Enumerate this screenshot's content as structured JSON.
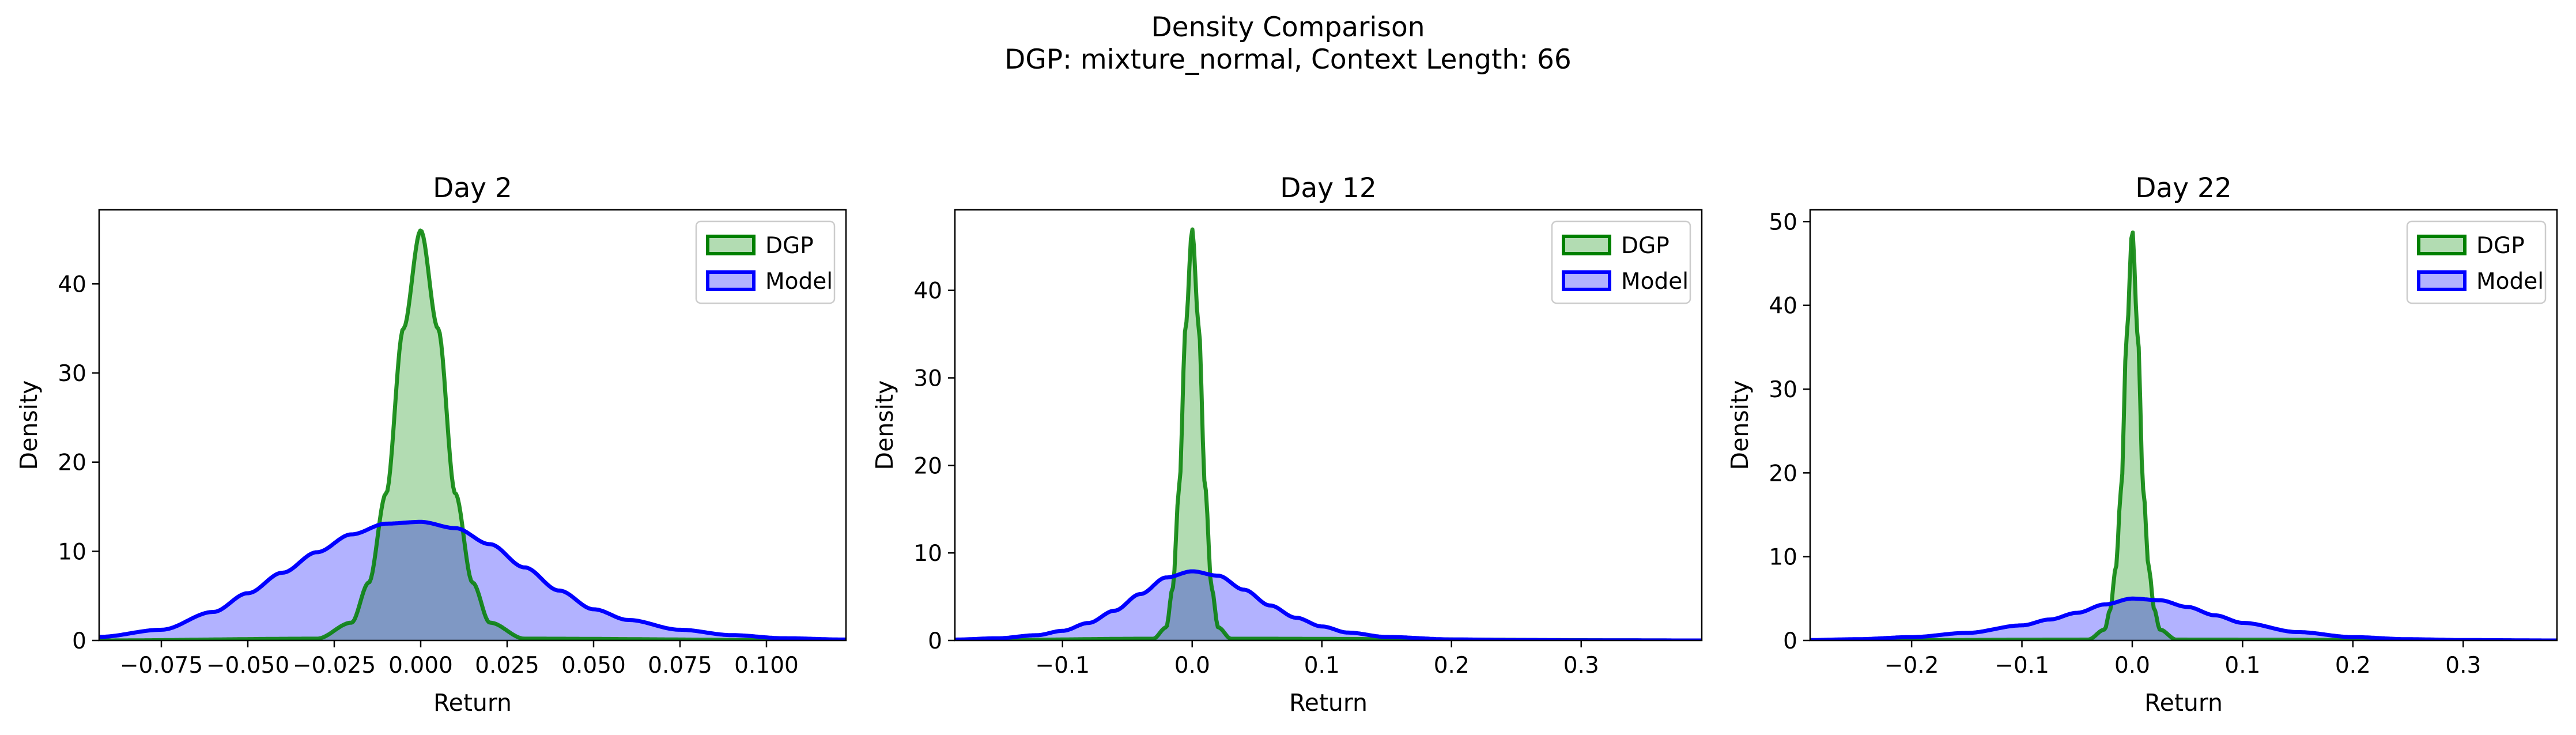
{
  "figure": {
    "title_line1": "Density Comparison",
    "title_line2": "DGP: mixture_normal, Context Length: 66"
  },
  "colors": {
    "dgp_line": "#008000",
    "dgp_fill": "#b2dcb2",
    "model_line": "#0000ff",
    "model_fill": "#b2b2ff",
    "overlap_fill": "#7f98c4"
  },
  "chart_data": [
    {
      "type": "area",
      "title": "Day 2",
      "xlabel": "Return",
      "ylabel": "Density",
      "xlim": [
        -0.093,
        0.123
      ],
      "ylim": [
        0,
        48.3
      ],
      "xticks": [
        -0.075,
        -0.05,
        -0.025,
        0.0,
        0.025,
        0.05,
        0.075,
        0.1
      ],
      "xtick_labels": [
        "−0.075",
        "−0.050",
        "−0.025",
        "0.000",
        "0.025",
        "0.050",
        "0.075",
        "0.100"
      ],
      "yticks": [
        0,
        10,
        20,
        30,
        40
      ],
      "ytick_labels": [
        "0",
        "10",
        "20",
        "30",
        "40"
      ],
      "legend": {
        "position": "top-right",
        "entries": [
          "DGP",
          "Model"
        ]
      },
      "series": [
        {
          "name": "DGP",
          "x": [
            -0.093,
            -0.03,
            -0.02,
            -0.015,
            -0.01,
            -0.005,
            0.0,
            0.005,
            0.01,
            0.015,
            0.02,
            0.03,
            0.123
          ],
          "y": [
            0,
            0.2,
            2.0,
            6.5,
            16.5,
            35.0,
            46.0,
            35.0,
            16.5,
            6.5,
            2.0,
            0.2,
            0
          ]
        },
        {
          "name": "Model",
          "x": [
            -0.093,
            -0.075,
            -0.06,
            -0.05,
            -0.04,
            -0.03,
            -0.02,
            -0.01,
            0.0,
            0.01,
            0.02,
            0.03,
            0.04,
            0.05,
            0.06,
            0.075,
            0.09,
            0.105,
            0.123
          ],
          "y": [
            0.4,
            1.2,
            3.2,
            5.3,
            7.6,
            9.9,
            11.9,
            13.1,
            13.3,
            12.6,
            10.8,
            8.2,
            5.6,
            3.5,
            2.3,
            1.2,
            0.6,
            0.25,
            0.1
          ]
        }
      ]
    },
    {
      "type": "area",
      "title": "Day 12",
      "xlabel": "Return",
      "ylabel": "Density",
      "xlim": [
        -0.183,
        0.393
      ],
      "ylim": [
        0,
        49.2
      ],
      "xticks": [
        -0.1,
        0.0,
        0.1,
        0.2,
        0.3
      ],
      "xtick_labels": [
        "−0.1",
        "0.0",
        "0.1",
        "0.2",
        "0.3"
      ],
      "yticks": [
        0,
        10,
        20,
        30,
        40
      ],
      "ytick_labels": [
        "0",
        "10",
        "20",
        "30",
        "40"
      ],
      "legend": {
        "position": "top-right",
        "entries": [
          "DGP",
          "Model"
        ]
      },
      "series": [
        {
          "name": "DGP",
          "x": [
            -0.183,
            -0.03,
            -0.02,
            -0.015,
            -0.01,
            -0.005,
            0.0,
            0.005,
            0.01,
            0.015,
            0.02,
            0.03,
            0.393
          ],
          "y": [
            0,
            0.2,
            1.5,
            6.0,
            17.5,
            36.0,
            47.0,
            36.0,
            17.5,
            6.0,
            1.5,
            0.2,
            0
          ]
        },
        {
          "name": "Model",
          "x": [
            -0.183,
            -0.15,
            -0.12,
            -0.1,
            -0.08,
            -0.06,
            -0.04,
            -0.02,
            0.0,
            0.02,
            0.04,
            0.06,
            0.08,
            0.1,
            0.12,
            0.15,
            0.2,
            0.25,
            0.3,
            0.393
          ],
          "y": [
            0.1,
            0.25,
            0.6,
            1.1,
            2.0,
            3.4,
            5.3,
            7.2,
            7.9,
            7.4,
            5.8,
            4.0,
            2.6,
            1.6,
            0.9,
            0.4,
            0.12,
            0.05,
            0.02,
            0
          ]
        }
      ]
    },
    {
      "type": "area",
      "title": "Day 22",
      "xlabel": "Return",
      "ylabel": "Density",
      "xlim": [
        -0.292,
        0.385
      ],
      "ylim": [
        0,
        51.4
      ],
      "xticks": [
        -0.2,
        -0.1,
        0.0,
        0.1,
        0.2,
        0.3
      ],
      "xtick_labels": [
        "−0.2",
        "−0.1",
        "0.0",
        "0.1",
        "0.2",
        "0.3"
      ],
      "yticks": [
        0,
        10,
        20,
        30,
        40,
        50
      ],
      "ytick_labels": [
        "0",
        "10",
        "20",
        "30",
        "40",
        "50"
      ],
      "legend": {
        "position": "top-right",
        "entries": [
          "DGP",
          "Model"
        ]
      },
      "series": [
        {
          "name": "DGP",
          "x": [
            -0.292,
            -0.04,
            -0.025,
            -0.02,
            -0.015,
            -0.01,
            -0.005,
            0.0,
            0.005,
            0.01,
            0.015,
            0.02,
            0.025,
            0.04,
            0.385
          ],
          "y": [
            0,
            0.1,
            1.3,
            3.7,
            8.6,
            18.0,
            36.5,
            49.0,
            36.5,
            18.0,
            8.6,
            3.7,
            1.3,
            0.1,
            0
          ]
        },
        {
          "name": "Model",
          "x": [
            -0.292,
            -0.25,
            -0.2,
            -0.15,
            -0.1,
            -0.075,
            -0.05,
            -0.025,
            0.0,
            0.025,
            0.05,
            0.075,
            0.1,
            0.15,
            0.2,
            0.25,
            0.3,
            0.385
          ],
          "y": [
            0.05,
            0.15,
            0.4,
            0.9,
            1.8,
            2.5,
            3.3,
            4.3,
            5.0,
            4.8,
            4.0,
            3.0,
            2.1,
            1.0,
            0.4,
            0.15,
            0.05,
            0
          ]
        }
      ]
    }
  ]
}
